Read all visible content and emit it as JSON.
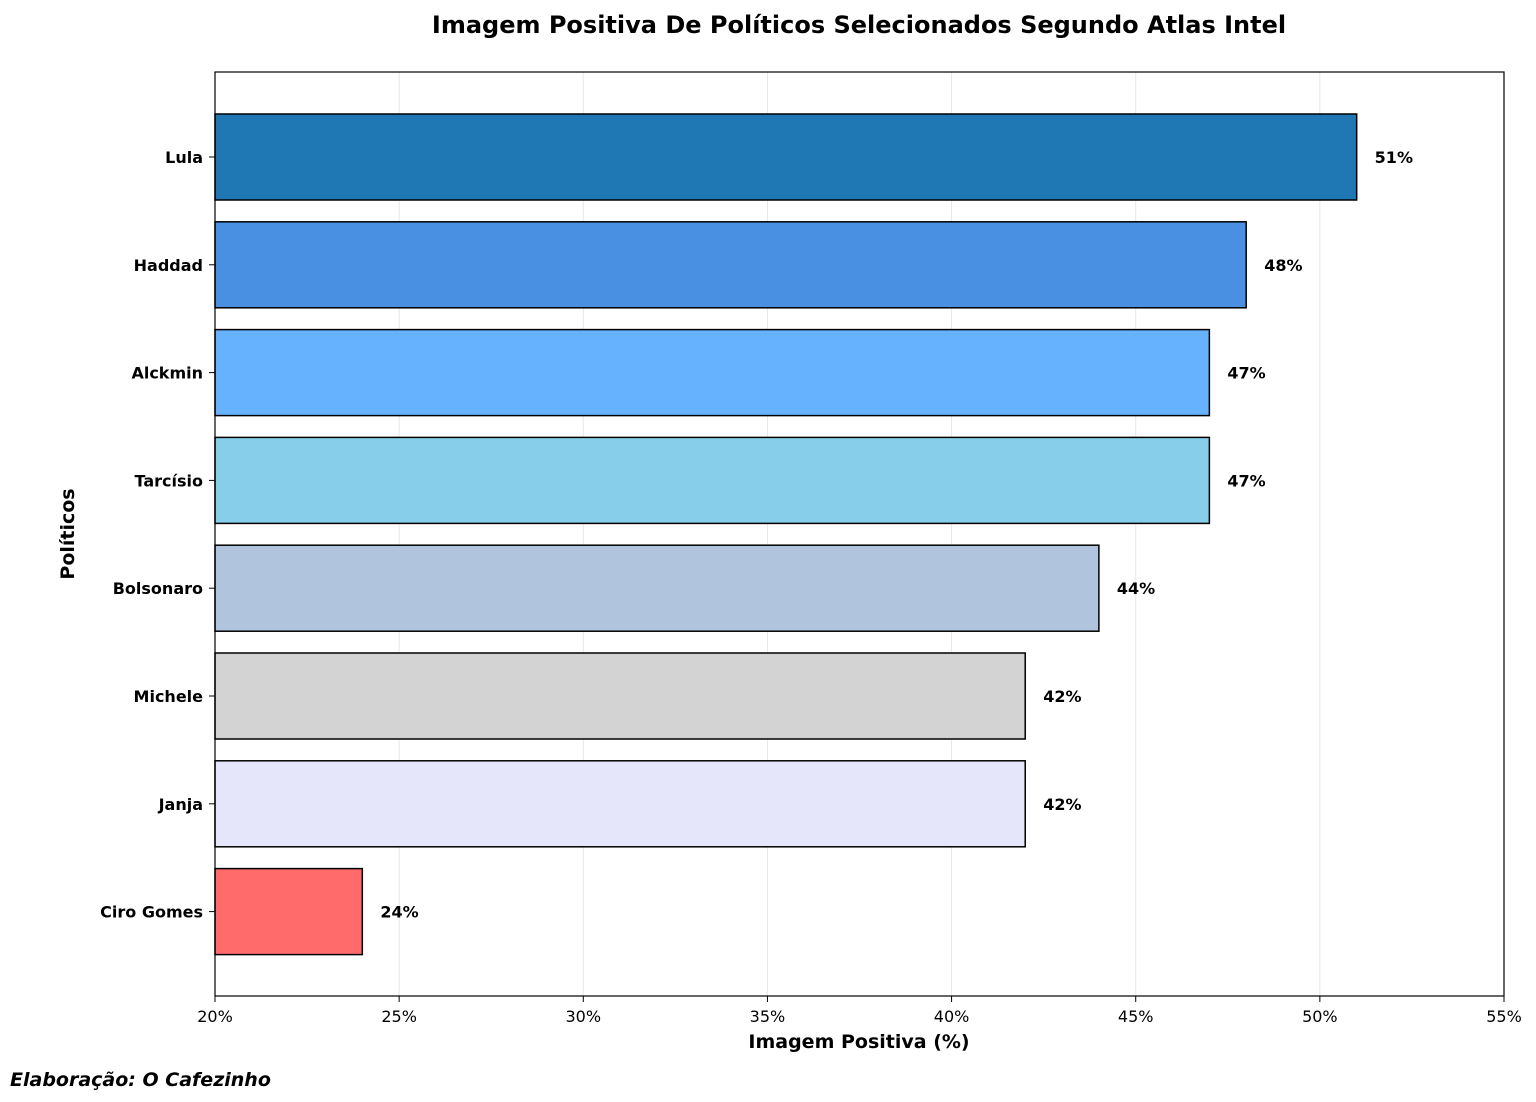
{
  "chart_data": {
    "type": "bar",
    "orientation": "horizontal",
    "title": "Imagem Positiva De Políticos Selecionados Segundo Atlas Intel",
    "xlabel": "Imagem Positiva (%)",
    "ylabel": "Políticos",
    "xlim": [
      20,
      55
    ],
    "xticks": [
      20,
      25,
      30,
      35,
      40,
      45,
      50,
      55
    ],
    "tick_suffix": "%",
    "grid": "x",
    "categories": [
      "Lula",
      "Haddad",
      "Alckmin",
      "Tarcísio",
      "Bolsonaro",
      "Michele",
      "Janja",
      "Ciro Gomes"
    ],
    "values": [
      51,
      48,
      47,
      47,
      44,
      42,
      42,
      24
    ],
    "data_labels": [
      "51%",
      "48%",
      "47%",
      "47%",
      "44%",
      "42%",
      "42%",
      "24%"
    ],
    "colors": [
      "#1f77b4",
      "#4a90e2",
      "#66b2ff",
      "#87ceeb",
      "#b0c4de",
      "#d3d3d3",
      "#e6e6fa",
      "#ff6b6b"
    ]
  },
  "footer": "Elaboração: O Cafezinho"
}
